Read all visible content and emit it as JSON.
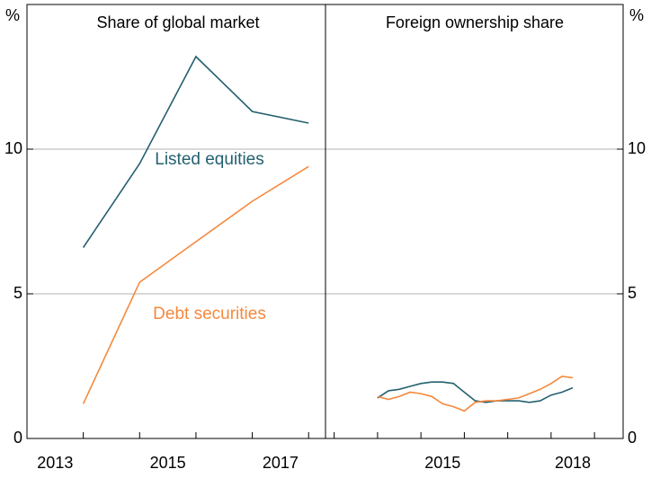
{
  "chart_data": [
    {
      "type": "line",
      "title": "Share of global market",
      "y_label": "%",
      "x": [
        2013,
        2014,
        2015,
        2016,
        2017
      ],
      "xlim": [
        2013,
        2018.3
      ],
      "xticks": [
        2013,
        2015,
        2017
      ],
      "ylim": [
        0,
        15
      ],
      "yticks": [
        0,
        5,
        10
      ],
      "grid": true,
      "series": [
        {
          "name": "Listed equities",
          "color": "#24606f",
          "values": [
            6.6,
            9.5,
            13.2,
            11.3,
            10.9
          ]
        },
        {
          "name": "Debt securities",
          "color": "#f5883d",
          "values": [
            1.2,
            5.4,
            6.8,
            8.2,
            9.4
          ]
        }
      ]
    },
    {
      "type": "line",
      "title": "Foreign ownership share",
      "y_label": "%",
      "x": [
        2014,
        2014.25,
        2014.5,
        2014.75,
        2015,
        2015.25,
        2015.5,
        2015.75,
        2016,
        2016.25,
        2016.5,
        2016.75,
        2017,
        2017.25,
        2017.5,
        2017.75,
        2018,
        2018.25,
        2018.5
      ],
      "xlim": [
        2012.8,
        2019.66
      ],
      "xticks": [
        2015,
        2018
      ],
      "ylim": [
        0,
        15
      ],
      "yticks": [
        0,
        5,
        10
      ],
      "grid": true,
      "series": [
        {
          "color": "#24606f",
          "values": [
            1.4,
            1.65,
            1.7,
            1.8,
            1.9,
            1.95,
            1.95,
            1.9,
            1.6,
            1.3,
            1.25,
            1.3,
            1.3,
            1.3,
            1.25,
            1.3,
            1.5,
            1.6,
            1.75
          ]
        },
        {
          "color": "#f5883d",
          "values": [
            1.45,
            1.35,
            1.45,
            1.6,
            1.55,
            1.45,
            1.2,
            1.1,
            0.95,
            1.25,
            1.3,
            1.3,
            1.35,
            1.4,
            1.55,
            1.7,
            1.9,
            2.15,
            2.1
          ]
        }
      ]
    }
  ]
}
